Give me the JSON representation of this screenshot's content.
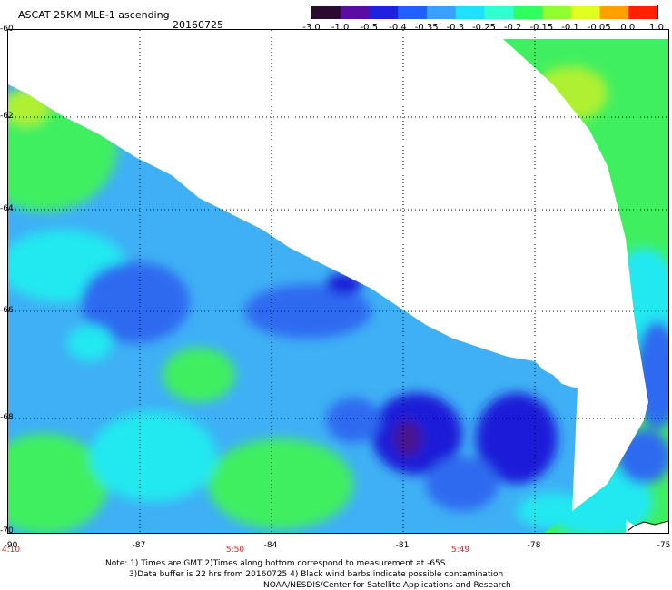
{
  "header": {
    "title": "ASCAT 25KM MLE-1 ascending",
    "date": "20160725"
  },
  "colorbar": {
    "labels": [
      "-3.0",
      "-1.0",
      "-0.5",
      "-0.4",
      "-0.35",
      "-0.3",
      "-0.25",
      "-0.2",
      "-0.15",
      "-0.1",
      "-0.05",
      "0.0",
      "1.0"
    ],
    "colors": [
      "#2a0a2e",
      "#5a0da0",
      "#2020e0",
      "#2060ff",
      "#3aa0ff",
      "#20e0ff",
      "#30ffd0",
      "#30ff60",
      "#90ff30",
      "#e0ff20",
      "#ffa000",
      "#ff2000"
    ]
  },
  "map": {
    "lat_labels": [
      "-60",
      "-62",
      "-64",
      "-66",
      "-68",
      "-70"
    ],
    "lon_labels": [
      "-90",
      "-87",
      "-84",
      "-81",
      "-78",
      "-75"
    ],
    "time_labels": [
      "4:10",
      "5:50",
      "5:49"
    ],
    "colors": {
      "blue_dark": "#1f1fd8",
      "blue": "#2f6bf0",
      "light_blue": "#3fb0f5",
      "cyan": "#20e8f0",
      "green": "#40ef60",
      "yellow_green": "#b0f030",
      "purple": "#4a148c"
    }
  },
  "notes": {
    "line1": "Note: 1) Times are GMT 2)Times along bottom correspond to measurement at -65S",
    "line2": "3)Data buffer is 22 hrs from 20160725 4) Black wind barbs indicate possible contamination",
    "line3": "NOAA/NESDIS/Center for Satellite Applications and Research"
  }
}
